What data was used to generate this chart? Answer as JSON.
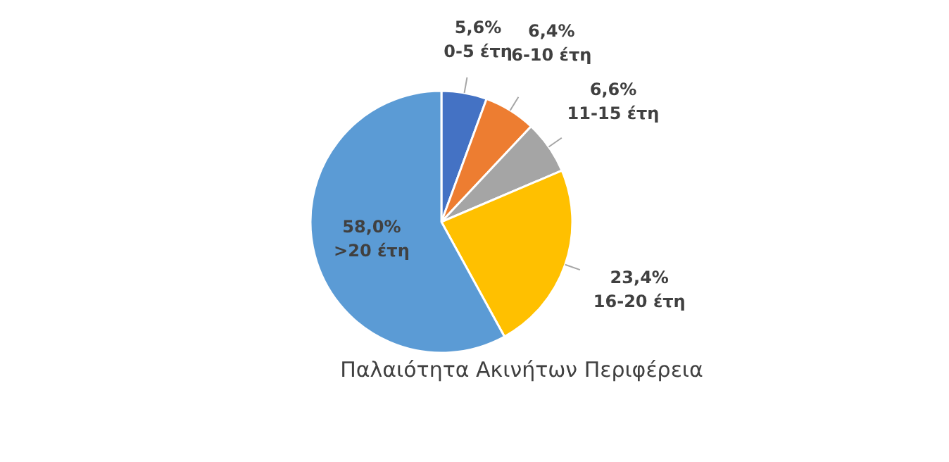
{
  "chart_data": {
    "type": "pie",
    "title": "Παλαιότητα Ακινήτων Περιφέρεια",
    "categories": [
      "0-5 έτη",
      "6-10 έτη",
      "11-15 έτη",
      "16-20 έτη",
      ">20 έτη"
    ],
    "values": [
      5.6,
      6.4,
      6.6,
      23.4,
      58.0
    ],
    "value_labels": [
      "5,6%",
      "6,4%",
      "6,6%",
      "23,4%",
      "58,0%"
    ],
    "colors": [
      "#4472c4",
      "#ed7d31",
      "#a5a5a5",
      "#ffc000",
      "#5b9bd5"
    ]
  }
}
